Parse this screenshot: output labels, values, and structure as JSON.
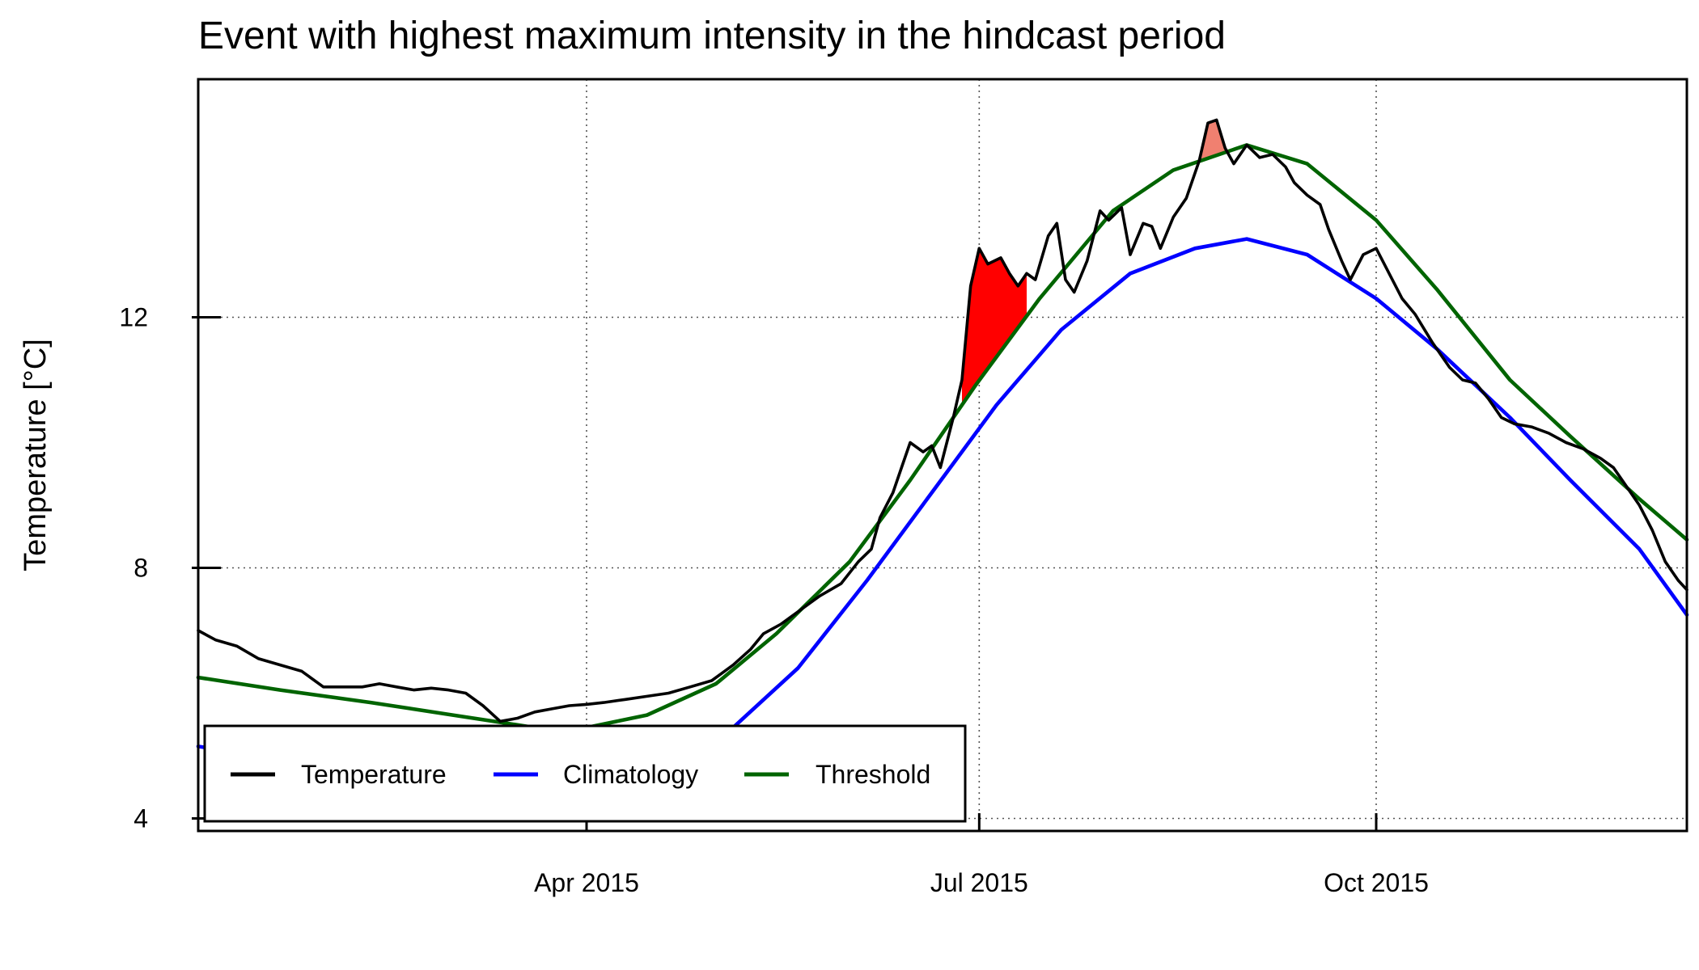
{
  "chart_data": {
    "type": "line",
    "title": "Event with highest maximum intensity in the hindcast period",
    "xlabel": "",
    "ylabel": "Temperature [°C]",
    "xlim": [
      "2015-01-01",
      "2015-12-12"
    ],
    "ylim": [
      3.8,
      15.8
    ],
    "x_ticks": [
      {
        "date": "2015-04-01",
        "label": "Apr 2015"
      },
      {
        "date": "2015-07-01",
        "label": "Jul 2015"
      },
      {
        "date": "2015-10-01",
        "label": "Oct 2015"
      }
    ],
    "y_ticks": [
      {
        "value": 4,
        "label": "4"
      },
      {
        "value": 8,
        "label": "8"
      },
      {
        "value": 12,
        "label": "12"
      }
    ],
    "grid": true,
    "legend_position": "bottom-left",
    "series": [
      {
        "name": "Temperature",
        "color": "#000000",
        "points": [
          [
            "2015-01-01",
            7.0
          ],
          [
            "2015-01-05",
            6.85
          ],
          [
            "2015-01-10",
            6.75
          ],
          [
            "2015-01-15",
            6.55
          ],
          [
            "2015-01-20",
            6.45
          ],
          [
            "2015-01-25",
            6.35
          ],
          [
            "2015-01-30",
            6.1
          ],
          [
            "2015-02-04",
            6.1
          ],
          [
            "2015-02-08",
            6.1
          ],
          [
            "2015-02-12",
            6.15
          ],
          [
            "2015-02-16",
            6.1
          ],
          [
            "2015-02-20",
            6.05
          ],
          [
            "2015-02-24",
            6.08
          ],
          [
            "2015-02-28",
            6.05
          ],
          [
            "2015-03-04",
            6.0
          ],
          [
            "2015-03-08",
            5.8
          ],
          [
            "2015-03-12",
            5.55
          ],
          [
            "2015-03-16",
            5.6
          ],
          [
            "2015-03-20",
            5.7
          ],
          [
            "2015-03-24",
            5.75
          ],
          [
            "2015-03-28",
            5.8
          ],
          [
            "2015-04-01",
            5.82
          ],
          [
            "2015-04-05",
            5.85
          ],
          [
            "2015-04-10",
            5.9
          ],
          [
            "2015-04-15",
            5.95
          ],
          [
            "2015-04-20",
            6.0
          ],
          [
            "2015-04-25",
            6.1
          ],
          [
            "2015-04-30",
            6.2
          ],
          [
            "2015-05-05",
            6.45
          ],
          [
            "2015-05-09",
            6.7
          ],
          [
            "2015-05-12",
            6.95
          ],
          [
            "2015-05-16",
            7.1
          ],
          [
            "2015-05-20",
            7.3
          ],
          [
            "2015-05-25",
            7.55
          ],
          [
            "2015-05-30",
            7.75
          ],
          [
            "2015-06-03",
            8.1
          ],
          [
            "2015-06-06",
            8.3
          ],
          [
            "2015-06-08",
            8.8
          ],
          [
            "2015-06-11",
            9.2
          ],
          [
            "2015-06-13",
            9.6
          ],
          [
            "2015-06-15",
            10.0
          ],
          [
            "2015-06-18",
            9.85
          ],
          [
            "2015-06-20",
            9.95
          ],
          [
            "2015-06-22",
            9.6
          ],
          [
            "2015-06-25",
            10.4
          ],
          [
            "2015-06-27",
            11.0
          ],
          [
            "2015-06-29",
            12.5
          ],
          [
            "2015-07-01",
            13.1
          ],
          [
            "2015-07-03",
            12.85
          ],
          [
            "2015-07-06",
            12.95
          ],
          [
            "2015-07-08",
            12.7
          ],
          [
            "2015-07-10",
            12.5
          ],
          [
            "2015-07-12",
            12.7
          ],
          [
            "2015-07-14",
            12.6
          ],
          [
            "2015-07-17",
            13.3
          ],
          [
            "2015-07-19",
            13.5
          ],
          [
            "2015-07-21",
            12.6
          ],
          [
            "2015-07-23",
            12.4
          ],
          [
            "2015-07-26",
            12.9
          ],
          [
            "2015-07-29",
            13.7
          ],
          [
            "2015-07-31",
            13.55
          ],
          [
            "2015-08-03",
            13.75
          ],
          [
            "2015-08-05",
            13.0
          ],
          [
            "2015-08-08",
            13.5
          ],
          [
            "2015-08-10",
            13.45
          ],
          [
            "2015-08-12",
            13.1
          ],
          [
            "2015-08-15",
            13.6
          ],
          [
            "2015-08-18",
            13.9
          ],
          [
            "2015-08-21",
            14.5
          ],
          [
            "2015-08-23",
            15.1
          ],
          [
            "2015-08-25",
            15.15
          ],
          [
            "2015-08-27",
            14.7
          ],
          [
            "2015-08-29",
            14.45
          ],
          [
            "2015-09-01",
            14.75
          ],
          [
            "2015-09-04",
            14.55
          ],
          [
            "2015-09-07",
            14.6
          ],
          [
            "2015-09-10",
            14.4
          ],
          [
            "2015-09-12",
            14.15
          ],
          [
            "2015-09-15",
            13.95
          ],
          [
            "2015-09-18",
            13.8
          ],
          [
            "2015-09-20",
            13.4
          ],
          [
            "2015-09-23",
            12.9
          ],
          [
            "2015-09-25",
            12.6
          ],
          [
            "2015-09-28",
            13.0
          ],
          [
            "2015-10-01",
            13.1
          ],
          [
            "2015-10-04",
            12.7
          ],
          [
            "2015-10-07",
            12.3
          ],
          [
            "2015-10-10",
            12.05
          ],
          [
            "2015-10-14",
            11.6
          ],
          [
            "2015-10-18",
            11.2
          ],
          [
            "2015-10-21",
            11.0
          ],
          [
            "2015-10-24",
            10.95
          ],
          [
            "2015-10-27",
            10.7
          ],
          [
            "2015-10-30",
            10.4
          ],
          [
            "2015-11-02",
            10.3
          ],
          [
            "2015-11-06",
            10.25
          ],
          [
            "2015-11-10",
            10.15
          ],
          [
            "2015-11-14",
            10.0
          ],
          [
            "2015-11-18",
            9.9
          ],
          [
            "2015-11-22",
            9.75
          ],
          [
            "2015-11-25",
            9.6
          ],
          [
            "2015-11-28",
            9.3
          ],
          [
            "2015-12-01",
            9.0
          ],
          [
            "2015-12-04",
            8.6
          ],
          [
            "2015-12-07",
            8.1
          ],
          [
            "2015-12-10",
            7.8
          ],
          [
            "2015-12-12",
            7.65
          ]
        ]
      },
      {
        "name": "Climatology",
        "color": "#0000ff",
        "points": [
          [
            "2015-01-01",
            5.15
          ],
          [
            "2015-01-20",
            4.95
          ],
          [
            "2015-02-10",
            4.7
          ],
          [
            "2015-03-01",
            4.5
          ],
          [
            "2015-03-20",
            4.4
          ],
          [
            "2015-04-10",
            4.55
          ],
          [
            "2015-05-01",
            5.2
          ],
          [
            "2015-05-20",
            6.4
          ],
          [
            "2015-06-05",
            7.8
          ],
          [
            "2015-06-20",
            9.2
          ],
          [
            "2015-07-05",
            10.6
          ],
          [
            "2015-07-20",
            11.8
          ],
          [
            "2015-08-05",
            12.7
          ],
          [
            "2015-08-20",
            13.1
          ],
          [
            "2015-09-01",
            13.25
          ],
          [
            "2015-09-15",
            13.0
          ],
          [
            "2015-10-01",
            12.3
          ],
          [
            "2015-10-15",
            11.5
          ],
          [
            "2015-11-01",
            10.4
          ],
          [
            "2015-11-15",
            9.4
          ],
          [
            "2015-12-01",
            8.3
          ],
          [
            "2015-12-12",
            7.25
          ]
        ]
      },
      {
        "name": "Threshold",
        "color": "#006400",
        "points": [
          [
            "2015-01-01",
            6.25
          ],
          [
            "2015-01-20",
            6.05
          ],
          [
            "2015-02-10",
            5.85
          ],
          [
            "2015-03-01",
            5.65
          ],
          [
            "2015-03-20",
            5.45
          ],
          [
            "2015-04-01",
            5.45
          ],
          [
            "2015-04-15",
            5.65
          ],
          [
            "2015-05-01",
            6.15
          ],
          [
            "2015-05-15",
            6.95
          ],
          [
            "2015-06-01",
            8.1
          ],
          [
            "2015-06-15",
            9.4
          ],
          [
            "2015-06-30",
            10.9
          ],
          [
            "2015-07-15",
            12.3
          ],
          [
            "2015-08-01",
            13.7
          ],
          [
            "2015-08-15",
            14.35
          ],
          [
            "2015-09-01",
            14.75
          ],
          [
            "2015-09-15",
            14.45
          ],
          [
            "2015-10-01",
            13.55
          ],
          [
            "2015-10-15",
            12.45
          ],
          [
            "2015-11-01",
            11.0
          ],
          [
            "2015-11-15",
            10.1
          ],
          [
            "2015-12-01",
            9.1
          ],
          [
            "2015-12-12",
            8.45
          ]
        ]
      }
    ],
    "events": [
      {
        "start": "2015-06-27",
        "end": "2015-07-12",
        "fill": "#ff0000"
      },
      {
        "start": "2015-08-21",
        "end": "2015-08-27",
        "fill": "#f08070"
      }
    ]
  }
}
